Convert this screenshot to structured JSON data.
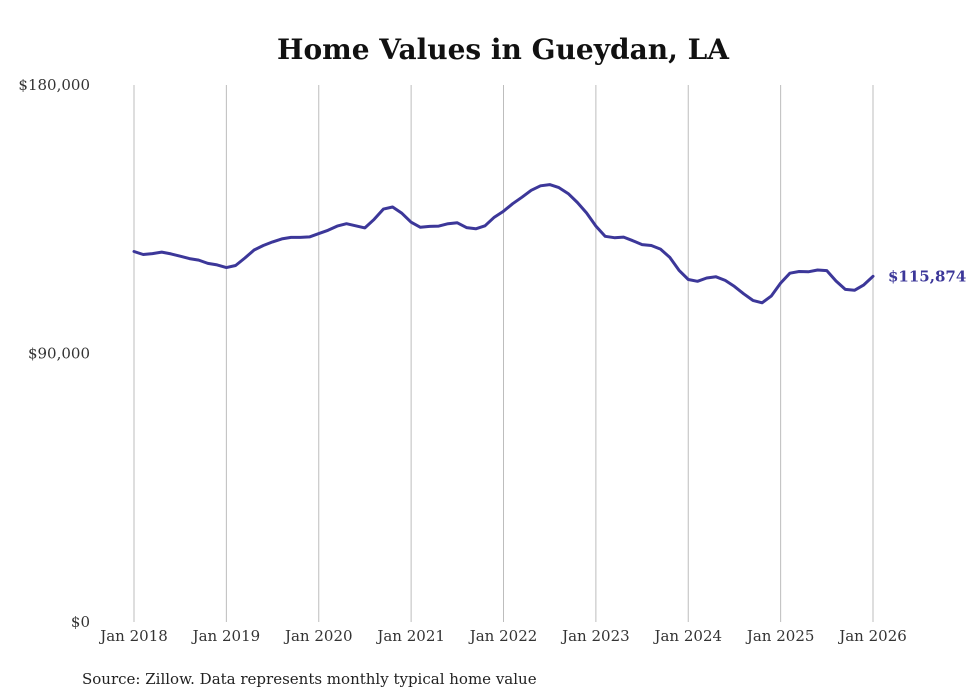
{
  "colors": {
    "line": "#3c3799",
    "grid": "#bdbdbd",
    "text": "#333333"
  },
  "source": "Source: Zillow. Data represents monthly typical home value",
  "chart_data": {
    "type": "line",
    "title": "Home Values in Gueydan, LA",
    "xlabel": "",
    "ylabel": "",
    "ylim": [
      0,
      180000
    ],
    "yticks": [
      0,
      90000,
      180000
    ],
    "ytick_labels": [
      "$0",
      "$90,000",
      "$180,000"
    ],
    "xlim": [
      2018.0,
      2026.0
    ],
    "xticks": [
      2018,
      2019,
      2020,
      2021,
      2022,
      2023,
      2024,
      2025,
      2026
    ],
    "xtick_labels": [
      "Jan 2018",
      "Jan 2019",
      "Jan 2020",
      "Jan 2021",
      "Jan 2022",
      "Jan 2023",
      "Jan 2024",
      "Jan 2025",
      "Jan 2026"
    ],
    "grid": "vertical",
    "end_label": "$115,874",
    "series": [
      {
        "name": "Typical home value",
        "x": [
          2018.0,
          2018.1,
          2018.2,
          2018.3,
          2018.4,
          2018.5,
          2018.6,
          2018.7,
          2018.8,
          2018.9,
          2019.0,
          2019.1,
          2019.2,
          2019.3,
          2019.4,
          2019.5,
          2019.6,
          2019.7,
          2019.8,
          2019.9,
          2020.0,
          2020.1,
          2020.2,
          2020.3,
          2020.4,
          2020.5,
          2020.6,
          2020.7,
          2020.8,
          2020.9,
          2021.0,
          2021.1,
          2021.2,
          2021.3,
          2021.4,
          2021.5,
          2021.6,
          2021.7,
          2021.8,
          2021.9,
          2022.0,
          2022.1,
          2022.2,
          2022.3,
          2022.4,
          2022.5,
          2022.6,
          2022.7,
          2022.8,
          2022.9,
          2023.0,
          2023.1,
          2023.2,
          2023.3,
          2023.4,
          2023.5,
          2023.6,
          2023.7,
          2023.8,
          2023.9,
          2024.0,
          2024.1,
          2024.2,
          2024.3,
          2024.4,
          2024.5,
          2024.6,
          2024.7,
          2024.8,
          2024.9,
          2025.0,
          2025.1,
          2025.2,
          2025.3,
          2025.4,
          2025.5,
          2025.6,
          2025.7,
          2025.8,
          2025.9,
          2026.0
        ],
        "values": [
          124200,
          123200,
          123500,
          124000,
          123400,
          122600,
          121800,
          121300,
          120200,
          119700,
          118800,
          119500,
          122000,
          124700,
          126200,
          127400,
          128400,
          128900,
          128900,
          129100,
          130200,
          131300,
          132700,
          133500,
          132800,
          132100,
          135000,
          138400,
          139100,
          137000,
          134000,
          132300,
          132600,
          132700,
          133500,
          133800,
          132200,
          131800,
          132800,
          135700,
          137700,
          140200,
          142400,
          144700,
          146200,
          146600,
          145600,
          143600,
          140600,
          137100,
          132700,
          129300,
          128800,
          129000,
          127800,
          126500,
          126200,
          125000,
          122200,
          117900,
          114800,
          114200,
          115300,
          115700,
          114500,
          112500,
          110000,
          107800,
          107000,
          109300,
          113600,
          116900,
          117500,
          117400,
          118000,
          117800,
          114300,
          111500,
          111200,
          113000,
          115874
        ]
      }
    ]
  }
}
